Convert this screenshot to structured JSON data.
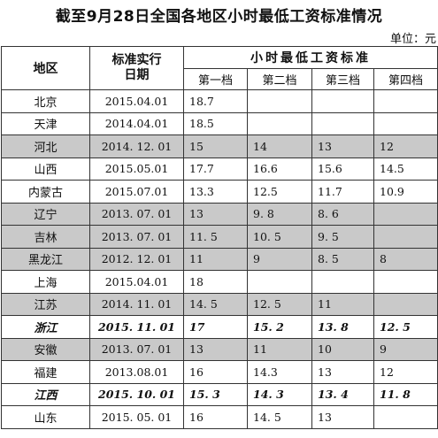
{
  "title": "截至9月28日全国各地区小时最低工资标准情况",
  "unit": "单位：元",
  "headers": {
    "region": "地区",
    "date_line1": "标准实行",
    "date_line2": "日期",
    "group": "小时最低工资标准",
    "tiers": [
      "第一档",
      "第二档",
      "第三档",
      "第四档"
    ]
  },
  "rows": [
    {
      "region": "北京",
      "date": "2015.04.01",
      "t1": "18.7",
      "t2": "",
      "t3": "",
      "t4": "",
      "shaded": false,
      "bold": false
    },
    {
      "region": "天津",
      "date": "2014.04.01",
      "t1": "18.5",
      "t2": "",
      "t3": "",
      "t4": "",
      "shaded": false,
      "bold": false
    },
    {
      "region": "河北",
      "date": "2014. 12. 01",
      "t1": "15",
      "t2": "14",
      "t3": "13",
      "t4": "12",
      "shaded": true,
      "bold": false
    },
    {
      "region": "山西",
      "date": "2015.05.01",
      "t1": "17.7",
      "t2": "16.6",
      "t3": "15.6",
      "t4": "14.5",
      "shaded": false,
      "bold": false
    },
    {
      "region": "内蒙古",
      "date": "2015.07.01",
      "t1": "13.3",
      "t2": "12.5",
      "t3": "11.7",
      "t4": "10.9",
      "shaded": false,
      "bold": false
    },
    {
      "region": "辽宁",
      "date": "2013. 07. 01",
      "t1": "13",
      "t2": "9. 8",
      "t3": "8. 6",
      "t4": "",
      "shaded": true,
      "bold": false
    },
    {
      "region": "吉林",
      "date": "2013. 07. 01",
      "t1": "11. 5",
      "t2": "10. 5",
      "t3": "9. 5",
      "t4": "",
      "shaded": true,
      "bold": false
    },
    {
      "region": "黑龙江",
      "date": "2012. 12. 01",
      "t1": "11",
      "t2": "9",
      "t3": "8. 5",
      "t4": "8",
      "shaded": true,
      "bold": false
    },
    {
      "region": "上海",
      "date": "2015.04.01",
      "t1": "18",
      "t2": "",
      "t3": "",
      "t4": "",
      "shaded": false,
      "bold": false
    },
    {
      "region": "江苏",
      "date": "2014. 11. 01",
      "t1": "14. 5",
      "t2": "12. 5",
      "t3": "11",
      "t4": "",
      "shaded": true,
      "bold": false
    },
    {
      "region": "浙江",
      "date": "2015. 11. 01",
      "t1": "17",
      "t2": "15. 2",
      "t3": "13. 8",
      "t4": "12. 5",
      "shaded": false,
      "bold": true
    },
    {
      "region": "安徽",
      "date": "2013. 07. 01",
      "t1": "13",
      "t2": "11",
      "t3": "10",
      "t4": "9",
      "shaded": true,
      "bold": false
    },
    {
      "region": "福建",
      "date": "2013.08.01",
      "t1": "16",
      "t2": "14.3",
      "t3": "13",
      "t4": "12",
      "shaded": false,
      "bold": false
    },
    {
      "region": "江西",
      "date": "2015. 10. 01",
      "t1": "15. 3",
      "t2": "14. 3",
      "t3": "13. 4",
      "t4": "11. 8",
      "shaded": false,
      "bold": true
    },
    {
      "region": "山东",
      "date": "2015. 05. 01",
      "t1": "16",
      "t2": "14. 5",
      "t3": "13",
      "t4": "",
      "shaded": false,
      "bold": false
    }
  ]
}
